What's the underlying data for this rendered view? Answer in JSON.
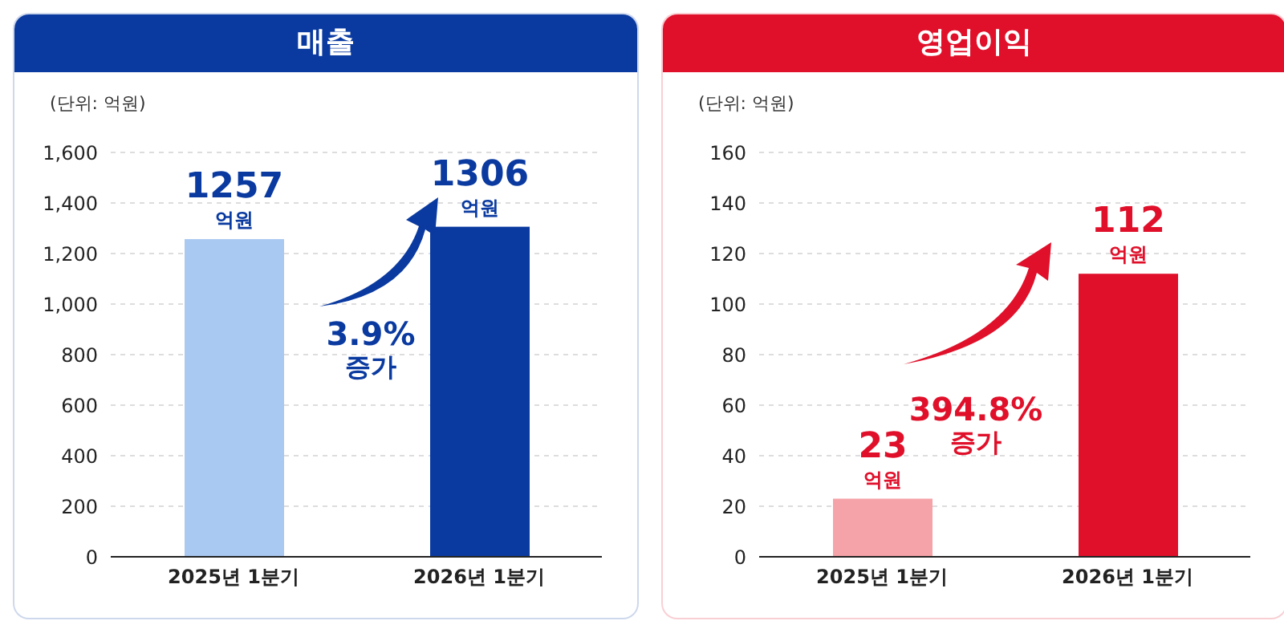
{
  "chart_data": [
    {
      "type": "bar",
      "title": "매출",
      "subtitle": "(단위: 억원)",
      "categories": [
        "2025년 1분기",
        "2026년 1분기"
      ],
      "values": [
        1257,
        1306
      ],
      "colors": [
        "#a9c8f2",
        "#0a3aa0"
      ],
      "value_labels": [
        "1257\n억원",
        "1306\n억원"
      ],
      "ylim": [
        0,
        1600
      ],
      "yticks": [
        {
          "value": 0,
          "label": "0"
        },
        {
          "value": 200,
          "label": "200"
        },
        {
          "value": 400,
          "label": "400"
        },
        {
          "value": 600,
          "label": "600"
        },
        {
          "value": 800,
          "label": "800"
        },
        {
          "value": 1000,
          "label": "1,000"
        },
        {
          "value": 1200,
          "label": "1,200"
        },
        {
          "value": 1400,
          "label": "1,400"
        },
        {
          "value": 1600,
          "label": "1,600"
        }
      ],
      "grid": "y",
      "annotations": [
        "3.9%\n증가"
      ]
    },
    {
      "type": "bar",
      "title": "영업이익",
      "subtitle": "(단위: 억원)",
      "categories": [
        "2025년 1분기",
        "2026년 1분기"
      ],
      "values": [
        23,
        112
      ],
      "colors": [
        "#f5a3a8",
        "#e0102a"
      ],
      "value_labels": [
        "23\n억원",
        "112\n억원"
      ],
      "ylim": [
        0,
        160
      ],
      "yticks": [
        0,
        20,
        40,
        60,
        80,
        100,
        120,
        140,
        160
      ],
      "grid": "y",
      "annotations": [
        "394.8%\n증가"
      ]
    }
  ]
}
